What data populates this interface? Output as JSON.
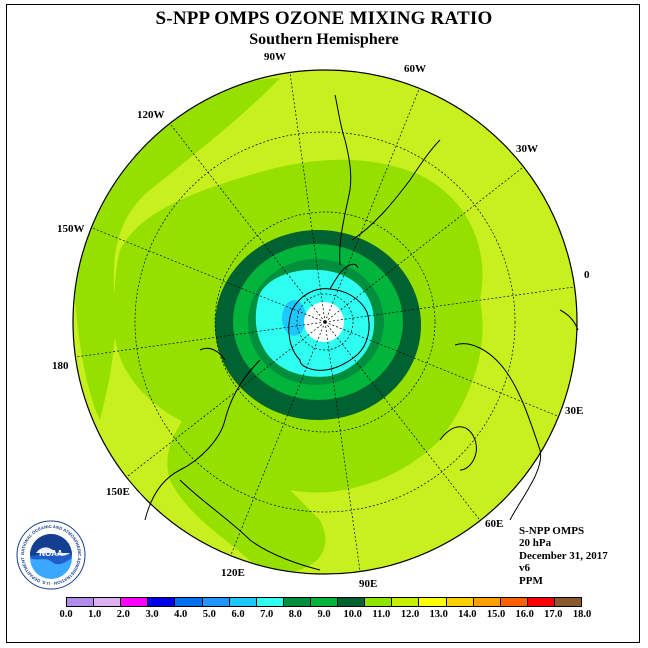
{
  "title": "S-NPP OMPS OZONE MIXING RATIO",
  "subtitle": "Southern Hemisphere",
  "longitude_labels": [
    {
      "id": "lon-90w",
      "text": "90W"
    },
    {
      "id": "lon-60w",
      "text": "60W"
    },
    {
      "id": "lon-30w",
      "text": "30W"
    },
    {
      "id": "lon-0",
      "text": "0"
    },
    {
      "id": "lon-30e",
      "text": "30E"
    },
    {
      "id": "lon-60e",
      "text": "60E"
    },
    {
      "id": "lon-90e",
      "text": "90E"
    },
    {
      "id": "lon-120e",
      "text": "120E"
    },
    {
      "id": "lon-150e",
      "text": "150E"
    },
    {
      "id": "lon-180",
      "text": "180"
    },
    {
      "id": "lon-150w",
      "text": "150W"
    },
    {
      "id": "lon-120w",
      "text": "120W"
    }
  ],
  "info": {
    "instrument": "S-NPP OMPS",
    "level": "20 hPa",
    "date": "December 31, 2017",
    "version": "v6",
    "units": "PPM"
  },
  "logo": {
    "name": "noaa-logo",
    "text": "NOAA",
    "ring_text": "NATIONAL OCEANIC AND ATMOSPHERIC ADMINISTRATION · U.S. DEPARTMENT OF COMMERCE"
  },
  "colorbar": {
    "labels": [
      "0.0",
      "1.0",
      "2.0",
      "3.0",
      "4.0",
      "5.0",
      "6.0",
      "7.0",
      "8.0",
      "9.0",
      "10.0",
      "11.0",
      "12.0",
      "13.0",
      "14.0",
      "15.0",
      "16.0",
      "17.0",
      "18.0"
    ],
    "colors": [
      "#b38bef",
      "#dcb0f2",
      "#ff00ff",
      "#0000e6",
      "#0070f0",
      "#1f96ff",
      "#1ec8ff",
      "#2ffff0",
      "#008f3c",
      "#00b43c",
      "#006230",
      "#8ee400",
      "#c6f000",
      "#ffff00",
      "#ffd000",
      "#ffa000",
      "#ff6000",
      "#ff0000",
      "#8b5a2b"
    ]
  },
  "map": {
    "background_color": "#c8f01e",
    "band_11_color": "#96e000",
    "band_10_color": "#006230",
    "band_9_color": "#00b43c",
    "band_8_color": "#008f3c",
    "band_7_color": "#2ffff0",
    "band_6_color": "#1ec8ff",
    "pole_color": "#ffffff"
  }
}
